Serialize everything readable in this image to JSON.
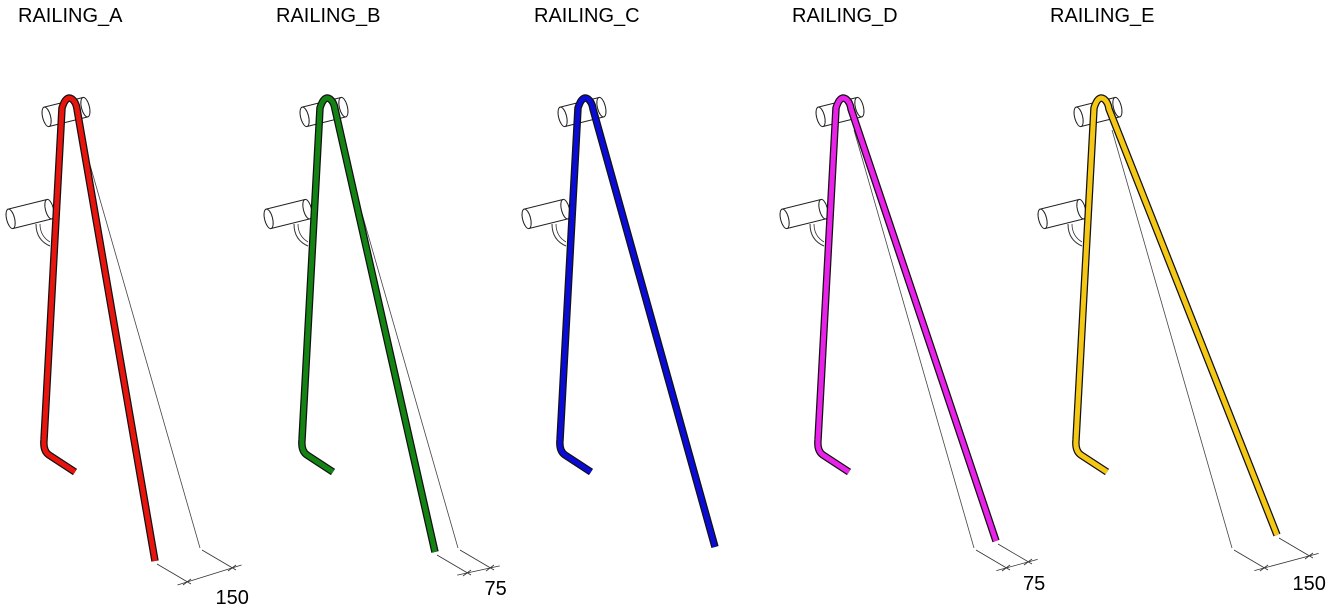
{
  "panels": [
    {
      "label": "RAILING_A",
      "color": "#e8140e",
      "dimension": 150
    },
    {
      "label": "RAILING_B",
      "color": "#138313",
      "dimension": 75
    },
    {
      "label": "RAILING_C",
      "color": "#0b0bd6"
    },
    {
      "label": "RAILING_D",
      "color": "#e822e8",
      "dimension": 75
    },
    {
      "label": "RAILING_E",
      "color": "#f5c816",
      "dimension": 150
    }
  ]
}
